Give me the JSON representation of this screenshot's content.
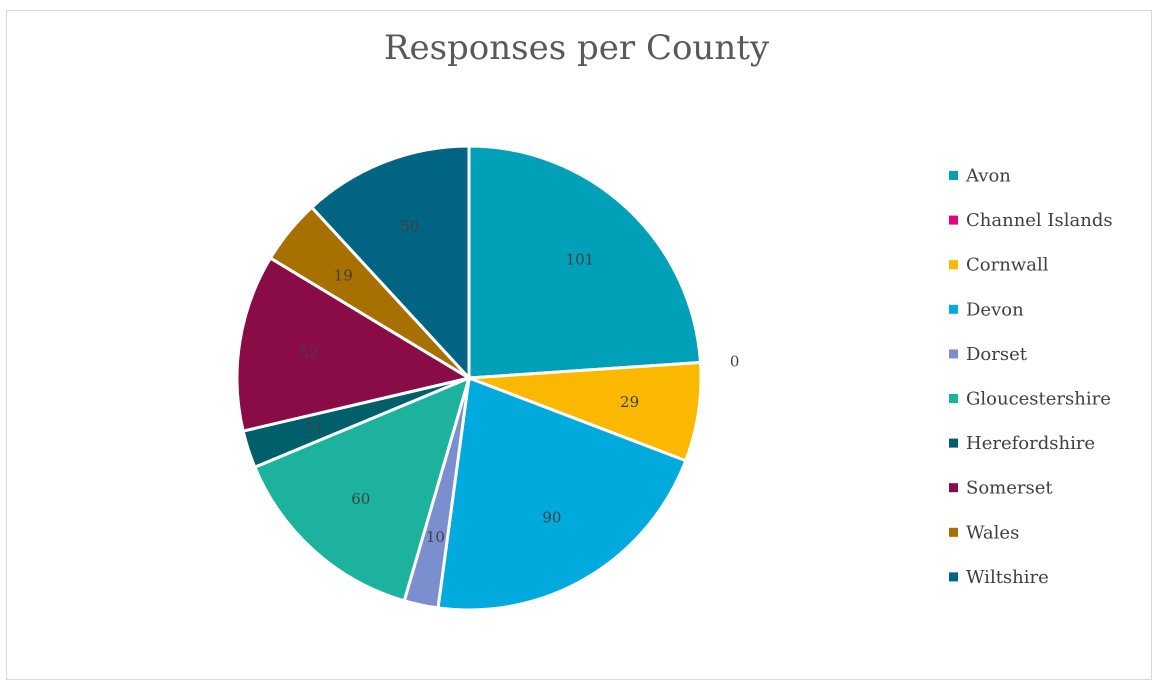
{
  "chart_data": {
    "type": "pie",
    "title": "Responses per County",
    "categories": [
      "Avon",
      "Channel Islands",
      "Cornwall",
      "Devon",
      "Dorset",
      "Gloucestershire",
      "Herefordshire",
      "Somerset",
      "Wales",
      "Wiltshire"
    ],
    "values": [
      101,
      0,
      29,
      90,
      10,
      60,
      11,
      52,
      19,
      50
    ],
    "colors": [
      "#00a0b8",
      "#e6007e",
      "#fbb800",
      "#00aadd",
      "#7b8fcf",
      "#1cb29e",
      "#005f6b",
      "#8a0c46",
      "#a87000",
      "#006482"
    ],
    "data_labels": [
      "101",
      "0",
      "29",
      "90",
      "10",
      "60",
      "11",
      "52",
      "19",
      "50"
    ],
    "legend_position": "right"
  }
}
